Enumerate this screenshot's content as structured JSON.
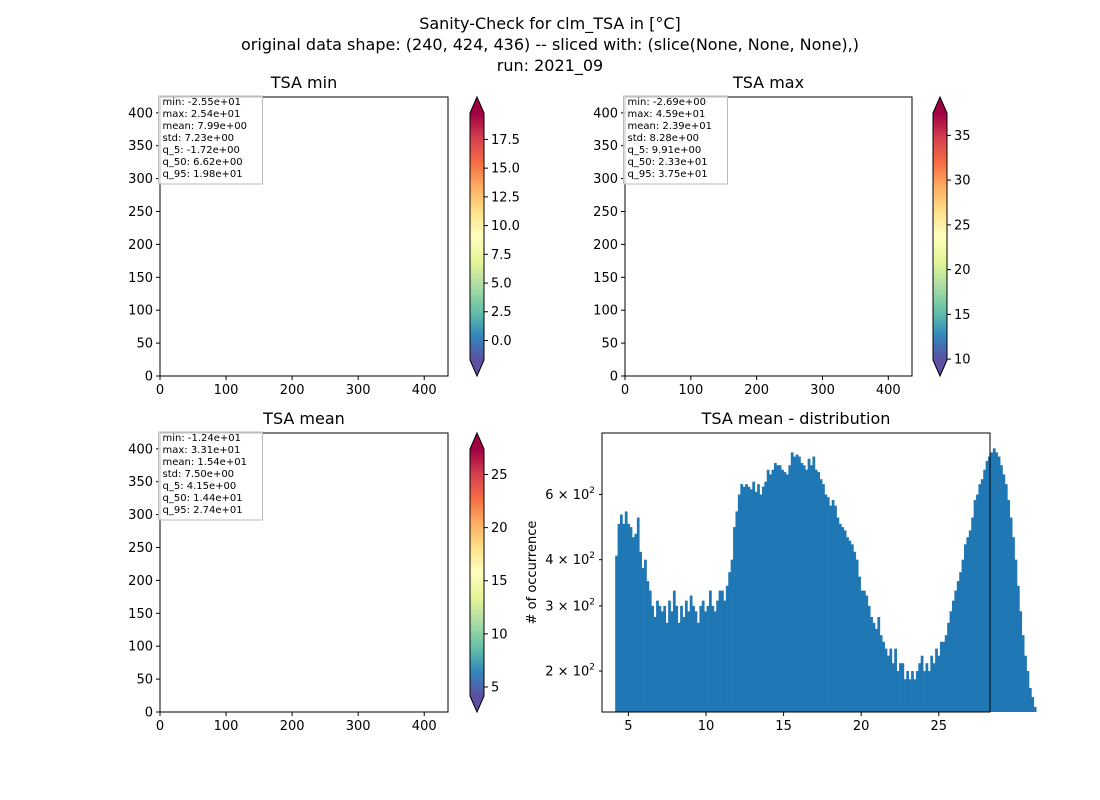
{
  "figure": {
    "title_lines": [
      "Sanity-Check for clm_TSA in [°C]",
      "original data shape: (240, 424, 436) -- sliced with: (slice(None, None, None),)",
      "run: 2021_09"
    ]
  },
  "colors": {
    "histogram_bar": "#1f77b4",
    "stats_box_border": "#bbbbbb",
    "spectral_r": [
      "#5e4fa2",
      "#3288bd",
      "#66c2a5",
      "#abdda4",
      "#e6f598",
      "#ffffbf",
      "#fee08b",
      "#fdae61",
      "#f46d43",
      "#d53e4f",
      "#9e0142"
    ]
  },
  "chart_data": [
    {
      "type": "heatmap",
      "title": "TSA min",
      "xlim": [
        0,
        436
      ],
      "ylim": [
        0,
        424
      ],
      "xticks": [
        "0",
        "100",
        "200",
        "300",
        "400"
      ],
      "yticks": [
        "0",
        "50",
        "100",
        "150",
        "200",
        "250",
        "300",
        "350",
        "400"
      ],
      "colormap": "Spectral_r",
      "colorbar": {
        "ticks": [
          "0.0",
          "2.5",
          "5.0",
          "7.5",
          "10.0",
          "12.5",
          "15.0",
          "17.5"
        ],
        "vmin": -1.7,
        "vmax": 19.8,
        "extend": "both"
      },
      "stats": [
        "min: -2.55e+01",
        "max: 2.54e+01",
        "mean: 7.99e+00",
        "std: 7.23e+00",
        "q_5: -1.72e+00",
        "q_50: 6.62e+00",
        "q_95: 1.98e+01"
      ]
    },
    {
      "type": "heatmap",
      "title": "TSA max",
      "xlim": [
        0,
        436
      ],
      "ylim": [
        0,
        424
      ],
      "xticks": [
        "0",
        "100",
        "200",
        "300",
        "400"
      ],
      "yticks": [
        "0",
        "50",
        "100",
        "150",
        "200",
        "250",
        "300",
        "350",
        "400"
      ],
      "colormap": "Spectral_r",
      "colorbar": {
        "ticks": [
          "10",
          "15",
          "20",
          "25",
          "30",
          "35"
        ],
        "vmin": 9.9,
        "vmax": 37.5,
        "extend": "both"
      },
      "stats": [
        "min: -2.69e+00",
        "max: 4.59e+01",
        "mean: 2.39e+01",
        "std: 8.28e+00",
        "q_5: 9.91e+00",
        "q_50: 2.33e+01",
        "q_95: 3.75e+01"
      ]
    },
    {
      "type": "heatmap",
      "title": "TSA mean",
      "xlim": [
        0,
        436
      ],
      "ylim": [
        0,
        424
      ],
      "xticks": [
        "0",
        "100",
        "200",
        "300",
        "400"
      ],
      "yticks": [
        "0",
        "50",
        "100",
        "150",
        "200",
        "250",
        "300",
        "350",
        "400"
      ],
      "colormap": "Spectral_r",
      "colorbar": {
        "ticks": [
          "5",
          "10",
          "15",
          "20",
          "25"
        ],
        "vmin": 4.15,
        "vmax": 27.4,
        "extend": "both"
      },
      "stats": [
        "min: -1.24e+01",
        "max: 3.31e+01",
        "mean: 1.54e+01",
        "std: 7.50e+00",
        "q_5: 4.15e+00",
        "q_50: 1.44e+01",
        "q_95: 2.74e+01"
      ]
    },
    {
      "type": "bar",
      "title": "TSA mean - distribution",
      "ylabel": "# of occurrence",
      "yscale": "log",
      "xlim": [
        3.3,
        28.3
      ],
      "ylim": [
        155,
        880
      ],
      "xticks": [
        5,
        10,
        15,
        20,
        25
      ],
      "yticks": [
        {
          "value": 200,
          "mantissa": "2",
          "base": "10",
          "exp": "2"
        },
        {
          "value": 300,
          "mantissa": "3",
          "base": "10",
          "exp": "2"
        },
        {
          "value": 400,
          "mantissa": "4",
          "base": "10",
          "exp": "2"
        },
        {
          "value": 600,
          "mantissa": "6",
          "base": "10",
          "exp": "2"
        }
      ],
      "x_start": 4.15,
      "bin_width": 0.155,
      "values": [
        410,
        500,
        530,
        500,
        540,
        500,
        490,
        460,
        470,
        520,
        420,
        380,
        400,
        350,
        330,
        300,
        280,
        310,
        300,
        290,
        300,
        270,
        310,
        290,
        330,
        300,
        270,
        300,
        280,
        310,
        290,
        320,
        300,
        290,
        270,
        300,
        310,
        290,
        300,
        330,
        300,
        290,
        310,
        330,
        330,
        310,
        340,
        370,
        400,
        490,
        540,
        600,
        640,
        630,
        640,
        630,
        620,
        650,
        610,
        640,
        600,
        630,
        650,
        700,
        680,
        700,
        730,
        720,
        720,
        700,
        690,
        680,
        720,
        780,
        760,
        770,
        760,
        730,
        720,
        700,
        750,
        720,
        760,
        700,
        690,
        660,
        640,
        600,
        590,
        560,
        580,
        560,
        520,
        500,
        490,
        480,
        460,
        450,
        440,
        420,
        400,
        360,
        330,
        330,
        320,
        300,
        280,
        270,
        260,
        280,
        250,
        240,
        230,
        220,
        230,
        210,
        230,
        200,
        210,
        210,
        190,
        200,
        190,
        200,
        190,
        200,
        210,
        220,
        200,
        210,
        200,
        220,
        210,
        230,
        220,
        240,
        240,
        250,
        270,
        290,
        310,
        330,
        350,
        370,
        400,
        440,
        460,
        480,
        520,
        580,
        600,
        640,
        660,
        700,
        740,
        760,
        780,
        800,
        780,
        760,
        720,
        680,
        640,
        580,
        520,
        460,
        400,
        340,
        290,
        250,
        220,
        200,
        180,
        170,
        160
      ]
    }
  ]
}
